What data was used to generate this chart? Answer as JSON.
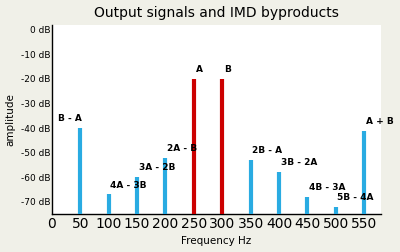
{
  "title": "Output signals and IMD byproducts",
  "xlabel": "Frequency Hz",
  "ylabel": "amplitude",
  "bars": [
    {
      "freq": 50,
      "db": -40,
      "color": "#29ABE2",
      "label": "B - A",
      "label_ha": "right"
    },
    {
      "freq": 100,
      "db": -67,
      "color": "#29ABE2",
      "label": "4A - 3B",
      "label_ha": "left"
    },
    {
      "freq": 150,
      "db": -60,
      "color": "#29ABE2",
      "label": "3A - 2B",
      "label_ha": "left"
    },
    {
      "freq": 200,
      "db": -52,
      "color": "#29ABE2",
      "label": "2A - B",
      "label_ha": "left"
    },
    {
      "freq": 250,
      "db": -20,
      "color": "#CC0000",
      "label": "A",
      "label_ha": "left"
    },
    {
      "freq": 300,
      "db": -20,
      "color": "#CC0000",
      "label": "B",
      "label_ha": "left"
    },
    {
      "freq": 350,
      "db": -53,
      "color": "#29ABE2",
      "label": "2B - A",
      "label_ha": "left"
    },
    {
      "freq": 400,
      "db": -58,
      "color": "#29ABE2",
      "label": "3B - 2A",
      "label_ha": "left"
    },
    {
      "freq": 450,
      "db": -68,
      "color": "#29ABE2",
      "label": "4B - 3A",
      "label_ha": "left"
    },
    {
      "freq": 500,
      "db": -72,
      "color": "#29ABE2",
      "label": "5B - 4A",
      "label_ha": "left"
    },
    {
      "freq": 550,
      "db": -41,
      "color": "#29ABE2",
      "label": "A + B",
      "label_ha": "left"
    }
  ],
  "xlim": [
    0,
    580
  ],
  "ylim": [
    -75,
    2
  ],
  "yticks": [
    0,
    -10,
    -20,
    -30,
    -40,
    -50,
    -60,
    -70
  ],
  "ytick_labels": [
    "0 dB",
    "-10 dB",
    "-20 dB",
    "-30 dB",
    "-40 dB",
    "-50 dB",
    "-60 dB",
    "-70 dB"
  ],
  "xticks": [
    0,
    50,
    100,
    150,
    200,
    250,
    300,
    350,
    400,
    450,
    500,
    550
  ],
  "plot_bg_color": "#ffffff",
  "fig_bg_color": "#f0f0e8",
  "bar_linewidth": 3.0,
  "title_fontsize": 10,
  "label_fontsize": 6.5,
  "tick_fontsize": 6.5,
  "axis_label_fontsize": 7.5
}
